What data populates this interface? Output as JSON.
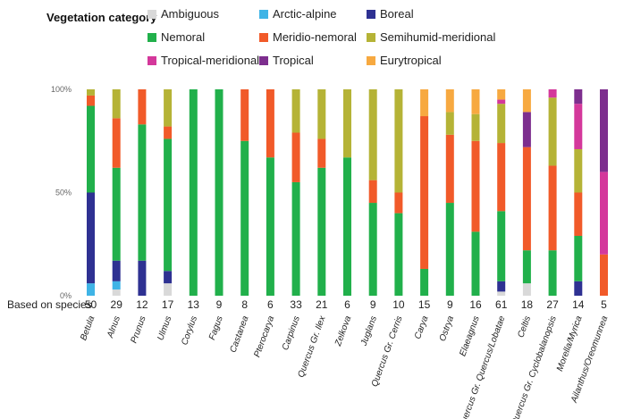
{
  "chart_data": {
    "type": "bar",
    "stacked": true,
    "normalized": true,
    "legend_title": "Vegetation category",
    "based_on_label": "Based on species",
    "y_ticks": [
      "0%",
      "50%",
      "100%"
    ],
    "ylim": [
      0,
      100
    ],
    "categories": [
      "Betula",
      "Alnus",
      "Prunus",
      "Ulmus",
      "Corylus",
      "Fagus",
      "Castanea",
      "Pterocarya",
      "Carpinus",
      "Quercus Gr. Ilex",
      "Zelkova",
      "Juglans",
      "Quercus Gr. Cerris",
      "Carya",
      "Ostrya",
      "Elaeagnus",
      "Quercus Gr. Quercus/Lobatae",
      "Celtis",
      "Quercus Gr. Cyclobalanopsis",
      "Morella/Myrica",
      "Ailanthus/Oreomunnea"
    ],
    "species_counts": [
      "50",
      "29",
      "12",
      "17",
      "13",
      "9",
      "8",
      "6",
      "33",
      "21",
      "6",
      "9",
      "10",
      "15",
      "9",
      "16",
      "61",
      "18",
      "27",
      "14",
      "5"
    ],
    "series": [
      {
        "name": "Ambiguous",
        "color": "#d9d9d9",
        "values": [
          0,
          3,
          0,
          6,
          0,
          0,
          0,
          0,
          0,
          0,
          0,
          0,
          0,
          0,
          0,
          0,
          2,
          6,
          0,
          0,
          0
        ]
      },
      {
        "name": "Arctic-alpine",
        "color": "#3fb4e6",
        "values": [
          6,
          4,
          0,
          0,
          0,
          0,
          0,
          0,
          0,
          0,
          0,
          0,
          0,
          0,
          0,
          0,
          0,
          0,
          0,
          0,
          0
        ]
      },
      {
        "name": "Boreal",
        "color": "#2e3192",
        "values": [
          44,
          10,
          17,
          6,
          0,
          0,
          0,
          0,
          0,
          0,
          0,
          0,
          0,
          0,
          0,
          0,
          5,
          0,
          0,
          7,
          0
        ]
      },
      {
        "name": "Nemoral",
        "color": "#21b04b",
        "values": [
          42,
          45,
          66,
          64,
          100,
          100,
          75,
          67,
          55,
          62,
          67,
          45,
          40,
          13,
          45,
          31,
          34,
          16,
          22,
          22,
          0
        ]
      },
      {
        "name": "Meridio-nemoral",
        "color": "#f15a29",
        "values": [
          5,
          24,
          17,
          6,
          0,
          0,
          25,
          33,
          24,
          14,
          0,
          11,
          10,
          74,
          33,
          44,
          33,
          50,
          41,
          21,
          20
        ]
      },
      {
        "name": "Semihumid-meridional",
        "color": "#b5b336",
        "values": [
          3,
          14,
          0,
          18,
          0,
          0,
          0,
          0,
          21,
          24,
          33,
          44,
          50,
          0,
          11,
          13,
          19,
          0,
          33,
          21,
          0
        ]
      },
      {
        "name": "Tropical-meridional",
        "color": "#d4389b",
        "values": [
          0,
          0,
          0,
          0,
          0,
          0,
          0,
          0,
          0,
          0,
          0,
          0,
          0,
          0,
          0,
          0,
          2,
          0,
          4,
          22,
          40
        ]
      },
      {
        "name": "Tropical",
        "color": "#7d2e8e",
        "values": [
          0,
          0,
          0,
          0,
          0,
          0,
          0,
          0,
          0,
          0,
          0,
          0,
          0,
          0,
          0,
          0,
          0,
          17,
          0,
          7,
          40
        ]
      },
      {
        "name": "Eurytropical",
        "color": "#f7a940",
        "values": [
          0,
          0,
          0,
          0,
          0,
          0,
          0,
          0,
          0,
          0,
          0,
          0,
          0,
          13,
          11,
          12,
          5,
          11,
          0,
          0,
          0
        ]
      }
    ]
  }
}
